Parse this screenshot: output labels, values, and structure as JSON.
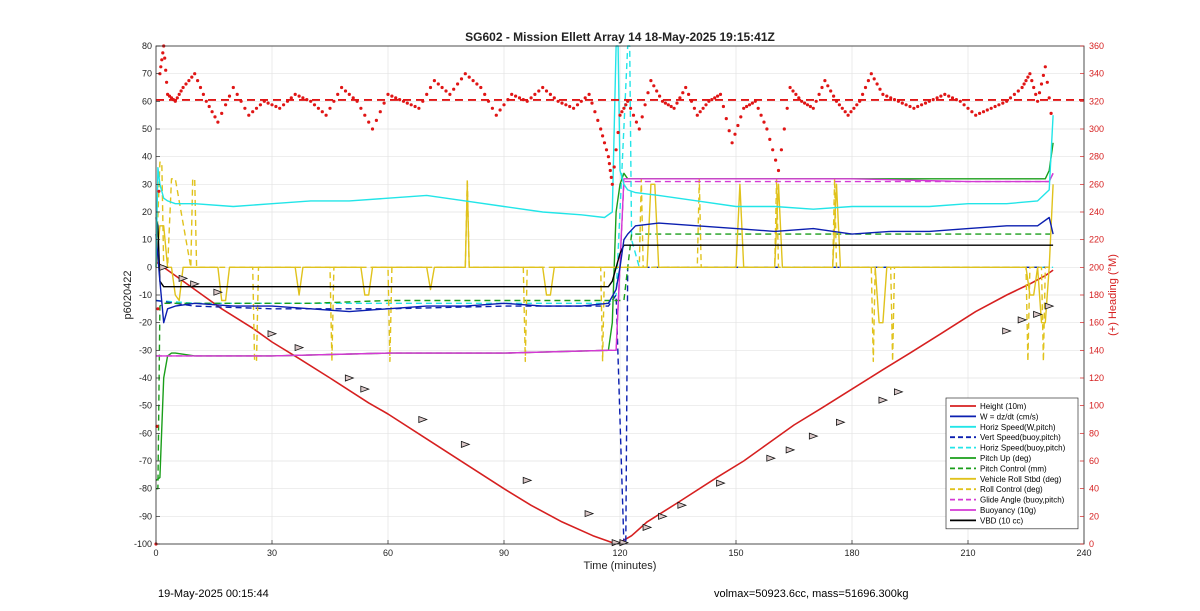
{
  "chart_data": {
    "type": "line",
    "title": "SG602 - Mission Ellett Array 14 18-May-2025 19:15:41Z",
    "xlabel": "Time (minutes)",
    "ylabel_left": "p6020422",
    "ylabel_right": "(+) Heading (°M)",
    "xlim": [
      0,
      240
    ],
    "ylim_left": [
      -100,
      80
    ],
    "ylim_right": [
      0,
      360
    ],
    "x_ticks": [
      0,
      30,
      60,
      90,
      120,
      150,
      180,
      210,
      240
    ],
    "y_ticks_left": [
      -100,
      -90,
      -80,
      -70,
      -60,
      -50,
      -40,
      -30,
      -20,
      -10,
      0,
      10,
      20,
      30,
      40,
      50,
      60,
      70,
      80
    ],
    "y_ticks_right": [
      0,
      20,
      40,
      60,
      80,
      100,
      120,
      140,
      160,
      180,
      200,
      220,
      240,
      260,
      280,
      300,
      320,
      340,
      360
    ],
    "grid": true,
    "legend_position": "bottom-right",
    "colors": {
      "height": "#d62020",
      "w": "#0b1fb0",
      "horiz": "#22e5e8",
      "pitch": "#1a9e1a",
      "roll": "#e0c21c",
      "glide": "#d43ad4",
      "vbd": "#000000",
      "heading": "#e01515"
    },
    "series": [
      {
        "name": "Height (10m)",
        "color": "#d62020",
        "style": "solid",
        "x": [
          0,
          3,
          8,
          12,
          17,
          25,
          30,
          37,
          45,
          55,
          60,
          70,
          80,
          90,
          97,
          105,
          113,
          118,
          120,
          123,
          127,
          135,
          145,
          152,
          158,
          165,
          172,
          180,
          188,
          195,
          203,
          212,
          220,
          226,
          230,
          232
        ],
        "y": [
          2,
          -1,
          -6,
          -10,
          -15,
          -22,
          -27,
          -33,
          -40,
          -49,
          -53,
          -62,
          -71,
          -80,
          -86,
          -92,
          -97,
          -99.5,
          -99.5,
          -97,
          -92,
          -85,
          -76,
          -70,
          -64,
          -57,
          -51,
          -44,
          -37,
          -31,
          -24,
          -16,
          -10,
          -6,
          -3,
          -1
        ]
      },
      {
        "name": "W = dz/dt (cm/s)",
        "color": "#0b1fb0",
        "style": "solid",
        "x": [
          0,
          1,
          2,
          3,
          5,
          10,
          20,
          30,
          40,
          50,
          60,
          70,
          80,
          90,
          100,
          110,
          117,
          119,
          120,
          121,
          122,
          124,
          130,
          140,
          150,
          160,
          170,
          180,
          190,
          200,
          210,
          220,
          228,
          231,
          232
        ],
        "y": [
          12,
          -5,
          -20,
          -15,
          -14,
          -13,
          -14,
          -14,
          -15,
          -16,
          -15,
          -14,
          -14,
          -13,
          -14,
          -14,
          -13,
          -8,
          0,
          10,
          12,
          15,
          16,
          15,
          14,
          13,
          14,
          12,
          13,
          13,
          14,
          15,
          15,
          18,
          12
        ]
      },
      {
        "name": "Horiz Speed(W,pitch)",
        "color": "#22e5e8",
        "style": "solid",
        "x": [
          0,
          0.5,
          1,
          2,
          3,
          5,
          10,
          20,
          30,
          40,
          50,
          60,
          70,
          80,
          90,
          100,
          110,
          116,
          118,
          119,
          119.5,
          120,
          121,
          122,
          124,
          130,
          140,
          150,
          160,
          170,
          180,
          190,
          200,
          210,
          220,
          228,
          231,
          232
        ],
        "y": [
          0,
          36,
          30,
          25,
          24,
          23,
          23,
          22,
          23,
          24,
          24,
          25,
          26,
          24,
          22,
          20,
          19,
          18,
          20,
          80,
          80,
          35,
          30,
          28,
          27,
          26,
          24,
          22,
          22,
          21,
          22,
          22,
          22,
          23,
          23,
          24,
          28,
          55
        ]
      },
      {
        "name": "Vert Speed(buoy,pitch)",
        "color": "#0b1fb0",
        "style": "dashed",
        "x": [
          0,
          10,
          30,
          60,
          90,
          117,
          119,
          121,
          121.5,
          122,
          124,
          150,
          180,
          210,
          232
        ],
        "y": [
          -12,
          -14,
          -15,
          -15,
          -14,
          -14,
          -10,
          -100,
          -100,
          0,
          0,
          0,
          0,
          0,
          0
        ]
      },
      {
        "name": "Horiz Speed(buoy,pitch)",
        "color": "#22e5e8",
        "style": "dashed",
        "x": [
          0,
          10,
          30,
          60,
          90,
          117,
          119,
          122,
          122.5,
          123,
          125,
          150,
          180,
          210,
          232
        ],
        "y": [
          -12,
          -13,
          -13,
          -13,
          -13,
          -13,
          -10,
          80,
          80,
          10,
          0,
          0,
          0,
          0,
          0
        ]
      },
      {
        "name": "Pitch Up (deg)",
        "color": "#1a9e1a",
        "style": "solid",
        "x": [
          0,
          1,
          2,
          3,
          4,
          5,
          10,
          30,
          60,
          90,
          117,
          118,
          119,
          120,
          121,
          122,
          124,
          150,
          180,
          210,
          230,
          231,
          232
        ],
        "y": [
          -77,
          -76,
          -40,
          -32,
          -31,
          -31,
          -32,
          -32,
          -31,
          -31,
          -30,
          -20,
          20,
          30,
          34,
          32,
          32,
          32,
          32,
          32,
          32,
          35,
          45
        ]
      },
      {
        "name": "Pitch Control (mm)",
        "color": "#1a9e1a",
        "style": "dashed",
        "x": [
          0,
          0.5,
          1,
          2,
          3,
          5,
          20,
          40,
          60,
          80,
          100,
          117,
          119,
          121,
          123,
          125,
          150,
          180,
          210,
          232
        ],
        "y": [
          -80,
          -80,
          -14,
          -13,
          -13,
          -13,
          -13,
          -13,
          -12,
          -12,
          -12,
          -12,
          -12,
          -12,
          12,
          12,
          12,
          12,
          12,
          12
        ]
      },
      {
        "name": "Vehicle Roll Stbd (deg)",
        "color": "#e0c21c",
        "style": "solid",
        "x": [
          0,
          1,
          2,
          3,
          4,
          5,
          6,
          7,
          8,
          16,
          17,
          18,
          19,
          20,
          36,
          37,
          38,
          40,
          53,
          54,
          55,
          56,
          70,
          71,
          72,
          80,
          80.5,
          81,
          82,
          100,
          101,
          102,
          103,
          117,
          118,
          120,
          124,
          127,
          128,
          129,
          130,
          150,
          151,
          152,
          160,
          161,
          162,
          175,
          176,
          177,
          186,
          187,
          188,
          189,
          200,
          225,
          226,
          227,
          228,
          229,
          230,
          231,
          232
        ],
        "y": [
          0,
          15,
          15,
          0,
          0,
          -10,
          -12,
          0,
          0,
          0,
          -12,
          -12,
          0,
          0,
          0,
          -10,
          0,
          0,
          0,
          -10,
          -10,
          0,
          0,
          -8,
          0,
          0,
          30,
          0,
          0,
          0,
          -10,
          -10,
          0,
          0,
          0,
          0,
          0,
          0,
          30,
          30,
          0,
          0,
          30,
          0,
          0,
          30,
          0,
          0,
          30,
          0,
          0,
          -20,
          -20,
          0,
          0,
          0,
          -10,
          -10,
          0,
          -20,
          -20,
          0,
          30
        ]
      },
      {
        "name": "Roll Control (deg)",
        "color": "#e0c21c",
        "style": "dashed",
        "x": [
          0,
          1,
          1.5,
          2,
          3,
          4,
          5,
          9,
          9.5,
          10,
          10.5,
          25,
          25.5,
          26,
          26.5,
          45,
          45.5,
          46,
          60,
          60.5,
          61,
          80,
          80.5,
          81,
          95,
          95.5,
          96,
          115,
          115.5,
          116,
          120,
          125,
          125.5,
          126,
          140,
          140.5,
          141,
          160,
          160.5,
          161,
          175,
          175.5,
          176,
          185,
          185.5,
          186,
          190,
          190.5,
          191,
          225,
          225.5,
          226,
          229,
          229.5,
          230,
          232
        ],
        "y": [
          0,
          38,
          38,
          0,
          0,
          32,
          32,
          0,
          32,
          32,
          0,
          0,
          -34,
          -34,
          0,
          0,
          -34,
          0,
          0,
          -34,
          0,
          0,
          32,
          0,
          0,
          -34,
          0,
          0,
          -34,
          0,
          0,
          0,
          32,
          0,
          0,
          32,
          0,
          0,
          32,
          0,
          0,
          32,
          0,
          0,
          -34,
          0,
          0,
          -34,
          0,
          0,
          -34,
          0,
          0,
          -34,
          0,
          0
        ]
      },
      {
        "name": "Glide Angle (buoy,pitch)",
        "color": "#d43ad4",
        "style": "dashed",
        "x": [
          0,
          3,
          10,
          30,
          60,
          90,
          117,
          119,
          121,
          124,
          150,
          180,
          210,
          231,
          232
        ],
        "y": [
          -32,
          -32,
          -32,
          -32,
          -31,
          -31,
          -30,
          -30,
          31,
          31,
          31,
          31,
          31,
          31,
          34
        ]
      },
      {
        "name": "Buoyancy (10g)",
        "color": "#d43ad4",
        "style": "solid",
        "x": [
          0,
          3,
          10,
          30,
          60,
          90,
          117,
          119,
          121,
          124,
          150,
          180,
          210,
          231,
          232
        ],
        "y": [
          -32,
          -32,
          -32,
          -32,
          -31,
          -31,
          -30,
          -30,
          32,
          32,
          32,
          32,
          31,
          31,
          34
        ]
      },
      {
        "name": "VBD (10 cc)",
        "color": "#000000",
        "style": "solid",
        "x": [
          0,
          0.5,
          1,
          2,
          3,
          30,
          60,
          90,
          117,
          118,
          120,
          121,
          123,
          150,
          180,
          210,
          232
        ],
        "y": [
          18,
          15,
          -5,
          -7,
          -7,
          -7,
          -7,
          -7,
          -7,
          -5,
          5,
          8,
          8,
          8,
          8,
          8,
          8
        ]
      }
    ],
    "markers": {
      "x": [
        2,
        7,
        10,
        16,
        30,
        37,
        50,
        54,
        69,
        80,
        96,
        112,
        119,
        121,
        127,
        131,
        136,
        146,
        159,
        164,
        170,
        177,
        188,
        192,
        220,
        224,
        228,
        231
      ],
      "y": [
        0,
        -4,
        -6,
        -9,
        -24,
        -29,
        -40,
        -44,
        -55,
        -64,
        -77,
        -89,
        -99.5,
        -99.5,
        -94,
        -90,
        -86,
        -78,
        -69,
        -66,
        -61,
        -56,
        -48,
        -45,
        -23,
        -19,
        -17,
        -14
      ]
    },
    "heading_series": {
      "name": "(+) Heading (°M)",
      "axis": "right",
      "mean": 321,
      "x": [
        0,
        1,
        2,
        3,
        5,
        7,
        10,
        13,
        16,
        20,
        24,
        28,
        32,
        36,
        40,
        44,
        48,
        52,
        56,
        60,
        64,
        68,
        72,
        76,
        80,
        84,
        88,
        92,
        96,
        100,
        104,
        108,
        112,
        115,
        117,
        118,
        120,
        122,
        125,
        128,
        131,
        134,
        137,
        140,
        143,
        146,
        149,
        152,
        155,
        158,
        161,
        164,
        167,
        170,
        173,
        176,
        179,
        182,
        185,
        188,
        192,
        196,
        200,
        204,
        208,
        212,
        216,
        220,
        224,
        226,
        228,
        230,
        232
      ],
      "y": [
        0,
        340,
        360,
        325,
        320,
        330,
        340,
        320,
        305,
        330,
        310,
        320,
        315,
        325,
        320,
        310,
        330,
        320,
        300,
        325,
        320,
        315,
        335,
        325,
        340,
        330,
        310,
        325,
        320,
        330,
        320,
        315,
        325,
        300,
        280,
        260,
        310,
        320,
        300,
        335,
        320,
        315,
        330,
        310,
        320,
        325,
        290,
        315,
        320,
        300,
        270,
        330,
        320,
        315,
        335,
        320,
        310,
        320,
        340,
        325,
        320,
        315,
        320,
        325,
        320,
        310,
        315,
        320,
        330,
        340,
        320,
        345,
        300
      ]
    },
    "footer_left": "19-May-2025 00:15:44",
    "footer_right": "volmax=50923.6cc, mass=51696.300kg"
  }
}
